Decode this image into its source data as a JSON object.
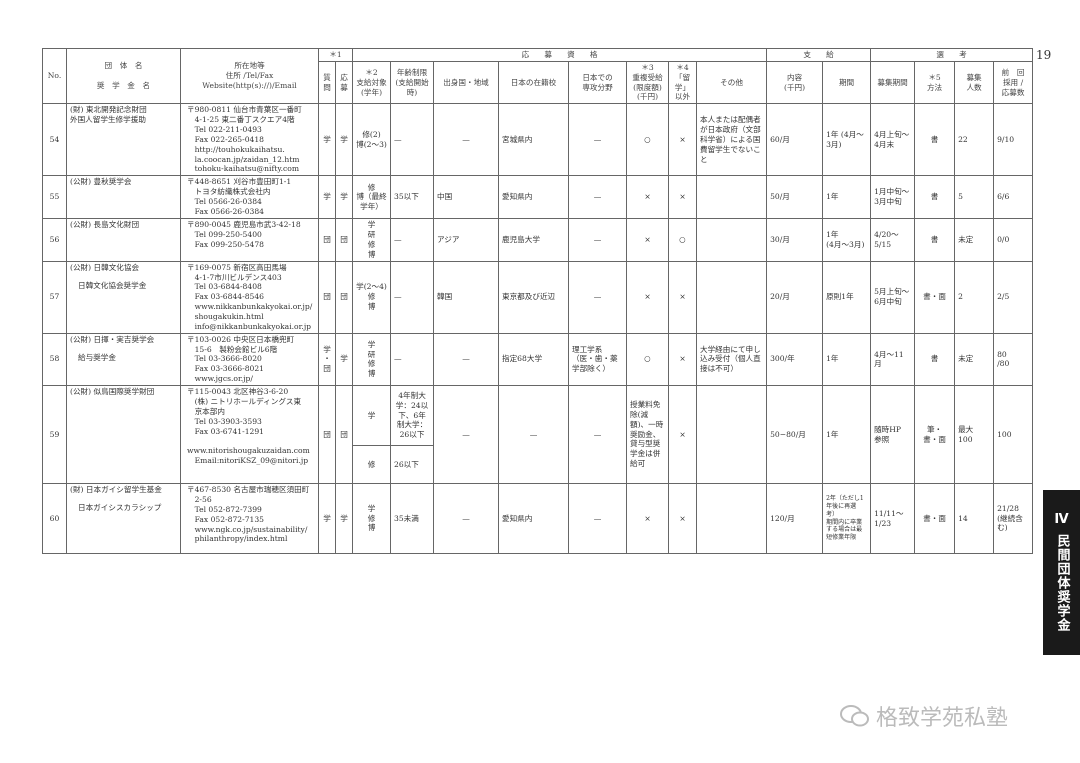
{
  "page_number": "19",
  "side_tab": {
    "roman": "Ⅳ",
    "label": "民間団体奨学金"
  },
  "watermark": "格致学苑私塾",
  "header": {
    "no": "No.",
    "org": "団　体　名\n\n奨　学　金　名",
    "address": "所在地等\n住所 /Tel/Fax\nWebsite(http(s)://)/Email",
    "group1": "＊1",
    "question": "質\n問",
    "apply": "応\n募",
    "group_eligibility": "応　　募　　資　　格",
    "target": "＊2\n支給対象\n(学年)",
    "age": "年齢制限\n(支給開始時)",
    "country": "出身国・地域",
    "school": "日本の在籍校",
    "major": "日本での\n専攻分野",
    "dup": "＊3\n重複受給\n(限度額)\n(千円)",
    "other_ok": "＊4\n「留学」\n以外",
    "notes": "その他",
    "group_payment": "支　　給",
    "amount": "内容\n(千円)",
    "period": "期間",
    "group_selection": "選　　考",
    "recruit": "募集期間",
    "method": "＊5\n方法",
    "count": "募集\n人数",
    "prev": "前　回\n採用 /\n応募数"
  },
  "rows": [
    {
      "no": "54",
      "org": "(財) 東北開発記念財団",
      "org2": "外国人留学生修学援助",
      "address": "〒980-0811 仙台市青葉区一番町\n　4-1-25 東二番丁スクエア4階\n　Tel 022-211-0493\n　Fax 022-265-0418\n　http://touhokukaihatsu.\n　la.coocan.jp/zaidan_12.htm\n　tohoku-kaihatsu@nifty.com",
      "q": "学",
      "apply": "学",
      "target": "修(2)\n博(2〜3)",
      "age": "—",
      "country": "—",
      "school": "宮城県内",
      "major": "—",
      "dup": "○",
      "other_ok": "×",
      "notes": "本人または配偶者が日本政府（文部科学省）による国費留学生でないこと",
      "amount": "60/月",
      "period": "1年 (4月〜3月)",
      "recruit": "4月上旬〜4月末",
      "method": "書",
      "count": "22",
      "prev": "9/10"
    },
    {
      "no": "55",
      "org": "(公財) 豊秋奨学会",
      "org2": "",
      "address": "〒448-8651 刈谷市豊田町1-1\n　トヨタ紡織株式会社内\n　Tel 0566-26-0384\n　Fax 0566-26-0384",
      "q": "学",
      "apply": "学",
      "target": "修\n博（最終\n学年）",
      "age": "35以下",
      "country": "中国",
      "school": "愛知県内",
      "major": "—",
      "dup": "×",
      "other_ok": "×",
      "notes": "",
      "amount": "50/月",
      "period": "1年",
      "recruit": "1月中旬〜3月中旬",
      "method": "書",
      "count": "5",
      "prev": "6/6"
    },
    {
      "no": "56",
      "org": "(公財) 長島文化財団",
      "org2": "",
      "address": "〒890-0045 鹿児島市武3-42-18\n　Tel 099-250-5400\n　Fax 099-250-5478",
      "q": "団",
      "apply": "団",
      "target": "学\n研\n修\n博",
      "age": "—",
      "country": "アジア",
      "school": "鹿児島大学",
      "major": "—",
      "dup": "×",
      "other_ok": "○",
      "notes": "",
      "amount": "30/月",
      "period": "1年\n(4月〜3月)",
      "recruit": "4/20〜\n5/15",
      "method": "書",
      "count": "未定",
      "prev": "0/0"
    },
    {
      "no": "57",
      "org": "(公財) 日韓文化協会",
      "org2": "日韓文化協会奨学金",
      "address": "〒169-0075 新宿区高田馬場\n　4-1-7市川ビルデンス403\n　Tel 03-6844-8408\n　Fax 03-6844-8546\n　www.nikkanbunkakyokai.or.jp/\n　shougakukin.html\n　info@nikkanbunkakyokai.or.jp",
      "q": "団",
      "apply": "団",
      "target": "学(2〜4)\n修\n博",
      "age": "—",
      "country": "韓国",
      "school": "東京都及び近辺",
      "major": "—",
      "dup": "×",
      "other_ok": "×",
      "notes": "",
      "amount": "20/月",
      "period": "原則1年",
      "recruit": "5月上旬〜6月中旬",
      "method": "書・面",
      "count": "2",
      "prev": "2/5"
    },
    {
      "no": "58",
      "org": "(公財) 日揮・実吉奨学会",
      "org2": "給与奨学金",
      "address": "〒103-0026 中央区日本橋兜町\n　15-6　製粉会館ビル6階\n　Tel 03-3666-8020\n　Fax 03-3666-8021\n　www.jgcs.or.jp/",
      "q": "学\n・\n団",
      "apply": "学",
      "target": "学\n研\n修\n博",
      "age": "—",
      "country": "—",
      "school": "指定68大学",
      "major": "理工学系\n（医・歯・薬学部除く）",
      "dup": "○",
      "other_ok": "×",
      "notes": "大学経由にて申し込み受付（個人直接は不可）",
      "amount": "300/年",
      "period": "1年",
      "recruit": "4月〜11月",
      "method": "書",
      "count": "未定",
      "prev": "80\n/80"
    },
    {
      "no": "59",
      "org": "(公財) 似鳥国際奨学財団",
      "org2": "",
      "address": "〒115-0043 北区神谷3-6-20\n　(株) ニトリホールディングス東\n　京本部内\n　Tel 03-3903-3593\n　Fax 03-6741-1291\n　www.nitorishougakuzaidan.com\n　Email:nitoriKSZ_09@nitori.jp",
      "q": "団",
      "apply": "団",
      "target": "学",
      "age": "4年制大\n学：24以\n下、6年\n制大学：\n26以下",
      "target2": "修",
      "age2": "26以下",
      "country": "—",
      "school": "—",
      "major": "—",
      "dup": "授業料免除(減額)、一時奨励金、貸与型奨学金は併給可",
      "other_ok": "×",
      "notes": "",
      "amount": "50−80/月",
      "period": "1年",
      "recruit": "随時HP\n参照",
      "method": "筆・\n書・面",
      "count": "最大\n100",
      "prev": "100"
    },
    {
      "no": "60",
      "org": "(財) 日本ガイシ留学生基金",
      "org2": "日本ガイシスカラシップ",
      "address": "〒467-8530 名古屋市瑞穂区須田町\n　2-56\n　Tel 052-872-7399\n　Fax 052-872-7135\n　www.ngk.co.jp/sustainability/\n　philanthropy/index.html",
      "q": "学",
      "apply": "学",
      "target": "学\n修\n博",
      "age": "35未満",
      "country": "—",
      "school": "愛知県内",
      "major": "—",
      "dup": "×",
      "other_ok": "×",
      "notes": "",
      "amount": "120/月",
      "period": "2年（ただし1年後に再選考）\n期間内に卒業する場合は最短修業年限",
      "recruit": "11/11〜\n1/23",
      "method": "書・面",
      "count": "14",
      "prev": "21/28\n(継続含む)"
    }
  ]
}
